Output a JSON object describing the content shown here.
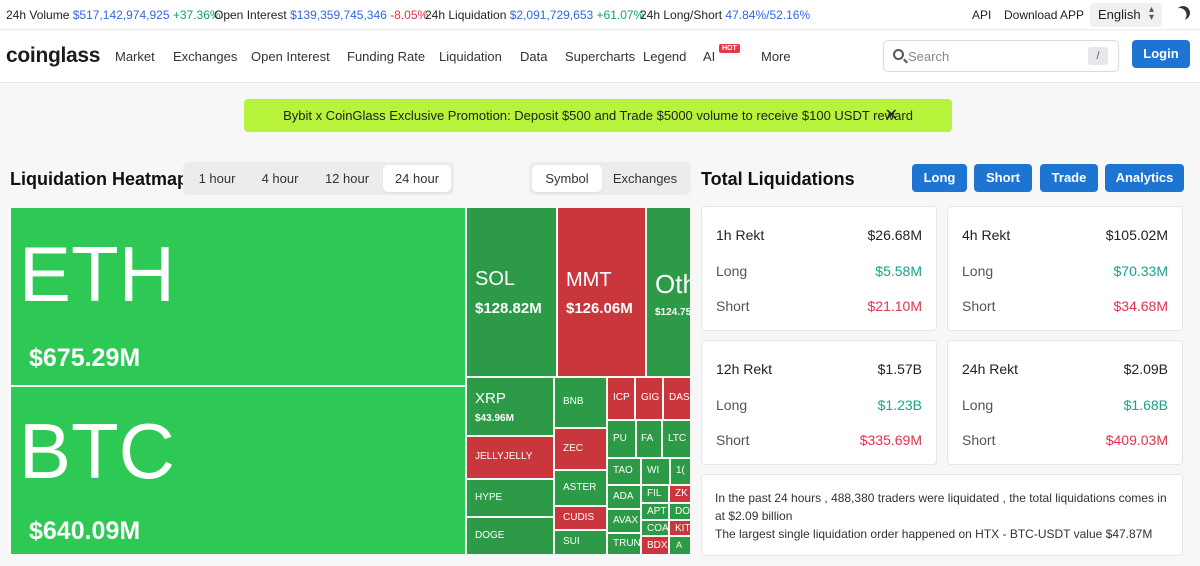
{
  "ticker": {
    "volume_label": "24h Volume",
    "volume_value": "$517,142,974,925",
    "volume_change": "+37.36%",
    "oi_label": "Open Interest",
    "oi_value": "$139,359,745,346",
    "oi_change": "-8.05%",
    "liq_label": "24h Liquidation",
    "liq_value": "$2,091,729,653",
    "liq_change": "+61.07%",
    "ls_label": "24h Long/Short",
    "ls_value": "47.84%/52.16%",
    "api": "API",
    "download": "Download APP",
    "language": "English",
    "theme_icon": "moon-icon"
  },
  "nav": {
    "logo": "coinglass",
    "items": [
      "Market",
      "Exchanges",
      "Open Interest",
      "Funding Rate",
      "Liquidation",
      "Data",
      "Supercharts",
      "Legend",
      "AI",
      "More"
    ],
    "hot_badge": "HOT",
    "search_placeholder": "Search",
    "search_shortcut": "/",
    "login": "Login"
  },
  "promo": {
    "text": "Bybit x CoinGlass Exclusive Promotion: Deposit $500 and Trade $5000 volume to receive $100 USDT reward",
    "close": "✕"
  },
  "heatmap": {
    "title": "Liquidation Heatmap",
    "time_tabs": [
      "1 hour",
      "4 hour",
      "12 hour",
      "24 hour"
    ],
    "active_time": "24 hour",
    "view_tabs": [
      "Symbol",
      "Exchanges"
    ],
    "active_view": "Symbol",
    "tiles": {
      "eth": {
        "symbol": "ETH",
        "amount": "$675.29M",
        "color": "#2dc954"
      },
      "btc": {
        "symbol": "BTC",
        "amount": "$640.09M",
        "color": "#2dc954"
      },
      "sol": {
        "symbol": "SOL",
        "amount": "$128.82M",
        "color": "#2c9a46"
      },
      "mmt": {
        "symbol": "MMT",
        "amount": "$126.06M",
        "color": "#c9373d"
      },
      "oth": {
        "symbol": "Oth",
        "amount": "$124.75",
        "color": "#2c9a46"
      },
      "xrp": {
        "symbol": "XRP",
        "amount": "$43.96M",
        "color": "#2c9a46"
      },
      "jelly": {
        "symbol": "JELLYJELLY"
      },
      "hype": {
        "symbol": "HYPE"
      },
      "doge": {
        "symbol": "DOGE"
      },
      "bnb": {
        "symbol": "BNB"
      },
      "zec": {
        "symbol": "ZEC"
      },
      "aster": {
        "symbol": "ASTER"
      },
      "cudis": {
        "symbol": "CUDIS"
      },
      "sui": {
        "symbol": "SUI"
      },
      "icp": {
        "symbol": "ICP"
      },
      "gig": {
        "symbol": "GIG"
      },
      "das": {
        "symbol": "DAS"
      },
      "pu": {
        "symbol": "PU"
      },
      "fa": {
        "symbol": "FA"
      },
      "ltc": {
        "symbol": "LTC"
      },
      "tao": {
        "symbol": "TAO"
      },
      "wi": {
        "symbol": "WI"
      },
      "n1": {
        "symbol": "1("
      },
      "ada": {
        "symbol": "ADA"
      },
      "fil": {
        "symbol": "FIL"
      },
      "zk": {
        "symbol": "ZK"
      },
      "avax": {
        "symbol": "AVAX"
      },
      "apt": {
        "symbol": "APT"
      },
      "do": {
        "symbol": "DO"
      },
      "coa": {
        "symbol": "COA"
      },
      "kit": {
        "symbol": "KIT"
      },
      "trun": {
        "symbol": "TRUN"
      },
      "bdx": {
        "symbol": "BDX"
      },
      "a": {
        "symbol": "A"
      }
    }
  },
  "total": {
    "title": "Total Liquidations",
    "buttons": [
      "Long",
      "Short",
      "Trade",
      "Analytics"
    ],
    "long_label": "Long",
    "short_label": "Short",
    "cards": [
      {
        "title": "1h Rekt",
        "total": "$26.68M",
        "long": "$5.58M",
        "short": "$21.10M"
      },
      {
        "title": "4h Rekt",
        "total": "$105.02M",
        "long": "$70.33M",
        "short": "$34.68M"
      },
      {
        "title": "12h Rekt",
        "total": "$1.57B",
        "long": "$1.23B",
        "short": "$335.69M"
      },
      {
        "title": "24h Rekt",
        "total": "$2.09B",
        "long": "$1.68B",
        "short": "$409.03M"
      }
    ],
    "summary_line1": "In the past 24 hours , 488,380 traders were liquidated , the total liquidations comes in at $2.09 billion",
    "summary_line2": "The largest single liquidation order happened on HTX - BTC-USDT value $47.87M"
  }
}
